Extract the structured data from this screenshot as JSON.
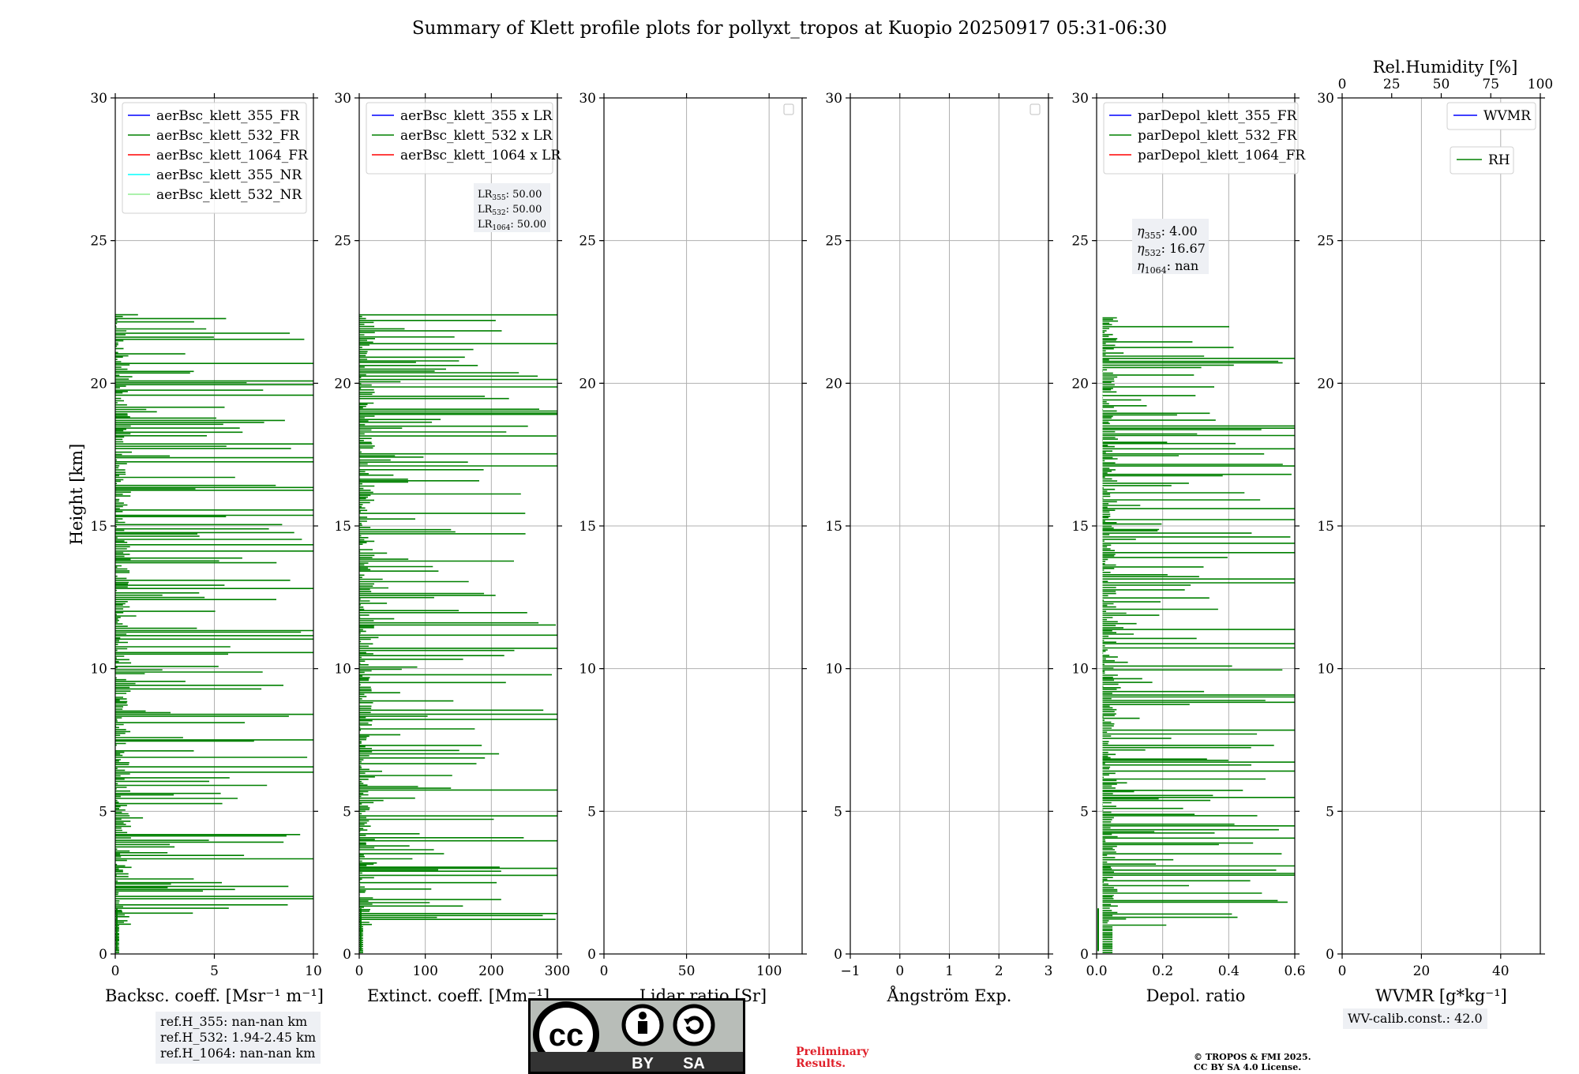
{
  "title": "Summary of Klett profile plots for pollyxt_tropos at Kuopio 20250917 05:31-06:30",
  "colors": {
    "c355": "#0000ff",
    "c532": "#008000",
    "c1064": "#ff0000",
    "c355nr": "#00ffff",
    "c532nr": "#90ee90"
  },
  "chart_data": [
    {
      "type": "line",
      "xlabel": "Backsc. coeff. [Msr⁻¹ m⁻¹]",
      "ylabel": "Height [km]",
      "xlim": [
        0,
        10
      ],
      "ylim": [
        0,
        30
      ],
      "xticks": [
        "0",
        "5",
        "10"
      ],
      "yticks": [
        "0",
        "5",
        "10",
        "15",
        "20",
        "25",
        "30"
      ],
      "grid": true,
      "legend": "top-left",
      "series": [
        {
          "name": "aerBsc_klett_355_FR",
          "values": []
        },
        {
          "name": "aerBsc_klett_532_FR",
          "note": "noisy profile, signal up to ~22.3 km, values mostly 0-10"
        },
        {
          "name": "aerBsc_klett_1064_FR",
          "values": []
        },
        {
          "name": "aerBsc_klett_355_NR",
          "values": []
        },
        {
          "name": "aerBsc_klett_532_NR",
          "values": []
        }
      ]
    },
    {
      "type": "line",
      "xlabel": "Extinct. coeff. [Mm⁻¹]",
      "xlim": [
        0,
        300
      ],
      "ylim": [
        0,
        30
      ],
      "xticks": [
        "0",
        "100",
        "200",
        "300"
      ],
      "yticks": [
        "0",
        "5",
        "10",
        "15",
        "20",
        "25",
        "30"
      ],
      "grid": true,
      "legend": "top-left",
      "series": [
        {
          "name": "aerBsc_klett_355 x LR",
          "values": []
        },
        {
          "name": "aerBsc_klett_532 x LR"
        },
        {
          "name": "aerBsc_klett_1064 x LR",
          "values": []
        }
      ],
      "annotation": {
        "sub": [
          "355",
          "532",
          "1064"
        ],
        "value": "50.00"
      }
    },
    {
      "type": "line",
      "xlabel": "Lidar ratio [Sr]",
      "xlim": [
        0,
        120
      ],
      "ylim": [
        0,
        30
      ],
      "xticks": [
        "0",
        "50",
        "100"
      ],
      "yticks": [
        "0",
        "5",
        "10",
        "15",
        "20",
        "25",
        "30"
      ],
      "grid": true,
      "series": []
    },
    {
      "type": "line",
      "xlabel": "Ångström Exp.",
      "xlim": [
        -1,
        3
      ],
      "ylim": [
        0,
        30
      ],
      "xticks": [
        "−1",
        "0",
        "1",
        "2",
        "3"
      ],
      "yticks": [
        "0",
        "5",
        "10",
        "15",
        "20",
        "25",
        "30"
      ],
      "grid": true,
      "series": []
    },
    {
      "type": "line",
      "xlabel": "Depol. ratio",
      "xlim": [
        0,
        0.6
      ],
      "ylim": [
        0,
        30
      ],
      "xticks": [
        "0.0",
        "0.2",
        "0.4",
        "0.6"
      ],
      "yticks": [
        "0",
        "5",
        "10",
        "15",
        "20",
        "25",
        "30"
      ],
      "grid": true,
      "legend": "top-left",
      "series": [
        {
          "name": "parDepol_klett_355_FR",
          "values": []
        },
        {
          "name": "parDepol_klett_532_FR"
        },
        {
          "name": "parDepol_klett_1064_FR",
          "values": []
        }
      ],
      "annotation": {
        "sub": [
          "355",
          "532",
          "1064"
        ],
        "values": [
          "4.00",
          "16.67",
          "nan"
        ]
      }
    },
    {
      "type": "line",
      "xlabel": "WVMR [g*kg⁻¹]",
      "x2label": "Rel.Humidity [%]",
      "xlim": [
        0,
        50
      ],
      "x2lim": [
        0,
        100
      ],
      "ylim": [
        0,
        30
      ],
      "xticks": [
        "0",
        "20",
        "40"
      ],
      "x2ticks": [
        "0",
        "25",
        "50",
        "75",
        "100"
      ],
      "yticks": [
        "0",
        "5",
        "10",
        "15",
        "20",
        "25",
        "30"
      ],
      "grid": true,
      "legend": "top-right",
      "series": [
        {
          "name": "WVMR",
          "values": []
        },
        {
          "name": "RH",
          "values": []
        }
      ]
    }
  ],
  "refh": {
    "r355": "ref.H_355: nan-nan km",
    "r532": "ref.H_532: 1.94-2.45 km",
    "r1064": "ref.H_1064: nan-nan km"
  },
  "wvcalib": "WV-calib.const.: 42.0",
  "license": {
    "cc": "cc",
    "by": "BY",
    "sa": "SA"
  },
  "prelim": {
    "line1": "Preliminary",
    "line2": "Results."
  },
  "copyright": {
    "line1": "© TROPOS & FMI 2025.",
    "line2": "CC BY SA 4.0 License."
  }
}
